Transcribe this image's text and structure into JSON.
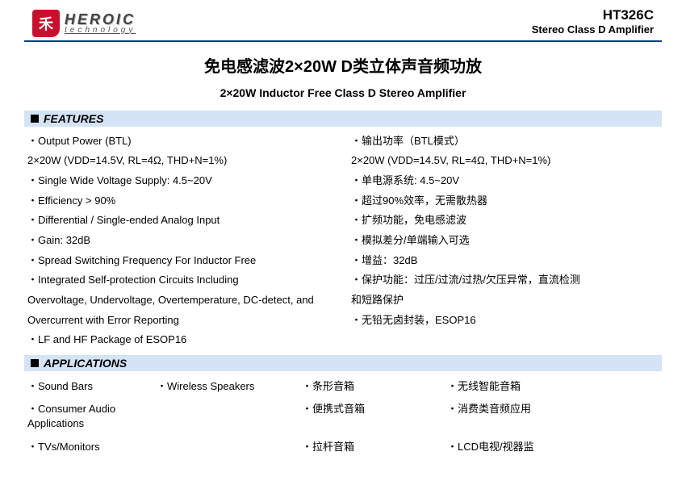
{
  "header": {
    "logo_char": "禾",
    "brand": "HEROIC",
    "tagline": "technology",
    "part_number": "HT326C",
    "part_desc": "Stereo Class D Amplifier"
  },
  "titles": {
    "cn": "免电感滤波2×20W D类立体声音频功放",
    "en": "2×20W Inductor Free Class D Stereo Amplifier"
  },
  "section_labels": {
    "features": "FEATURES",
    "applications": "APPLICATIONS"
  },
  "features_en": {
    "i0": "Output Power (BTL)",
    "i0b": "2×20W (VDD=14.5V, RL=4Ω, THD+N=1%)",
    "i1": "Single Wide Voltage Supply: 4.5~20V",
    "i2": "Efficiency > 90%",
    "i3": "Differential / Single-ended Analog Input",
    "i4": "Gain: 32dB",
    "i5": "Spread Switching Frequency For Inductor Free",
    "i6": "Integrated Self-protection Circuits Including",
    "i6b": "Overvoltage, Undervoltage, Overtemperature, DC-detect, and Overcurrent with Error Reporting",
    "i7": "LF and HF Package of ESOP16"
  },
  "features_cn": {
    "i0": "输出功率（BTL模式）",
    "i0b": "2×20W (VDD=14.5V, RL=4Ω, THD+N=1%)",
    "i1": "单电源系统: 4.5~20V",
    "i2": "超过90%效率，无需散热器",
    "i3": "扩频功能，免电感滤波",
    "i4": "模拟差分/单端输入可选",
    "i5": "增益：32dB",
    "i6": "保护功能：过压/过流/过热/欠压异常，直流检测",
    "i6b": "和短路保护",
    "i7": "无铅无卤封装，ESOP16"
  },
  "applications": {
    "a0": "Sound Bars",
    "a1": "Wireless Speakers",
    "a2": "条形音箱",
    "a3": "无线智能音箱",
    "a4": "Consumer Audio Applications",
    "a5": "",
    "a6": "便携式音箱",
    "a7": "消费类音频应用",
    "a8": "TVs/Monitors",
    "a9": "",
    "a10": "拉杆音箱",
    "a11": "LCD电视/视器监"
  }
}
